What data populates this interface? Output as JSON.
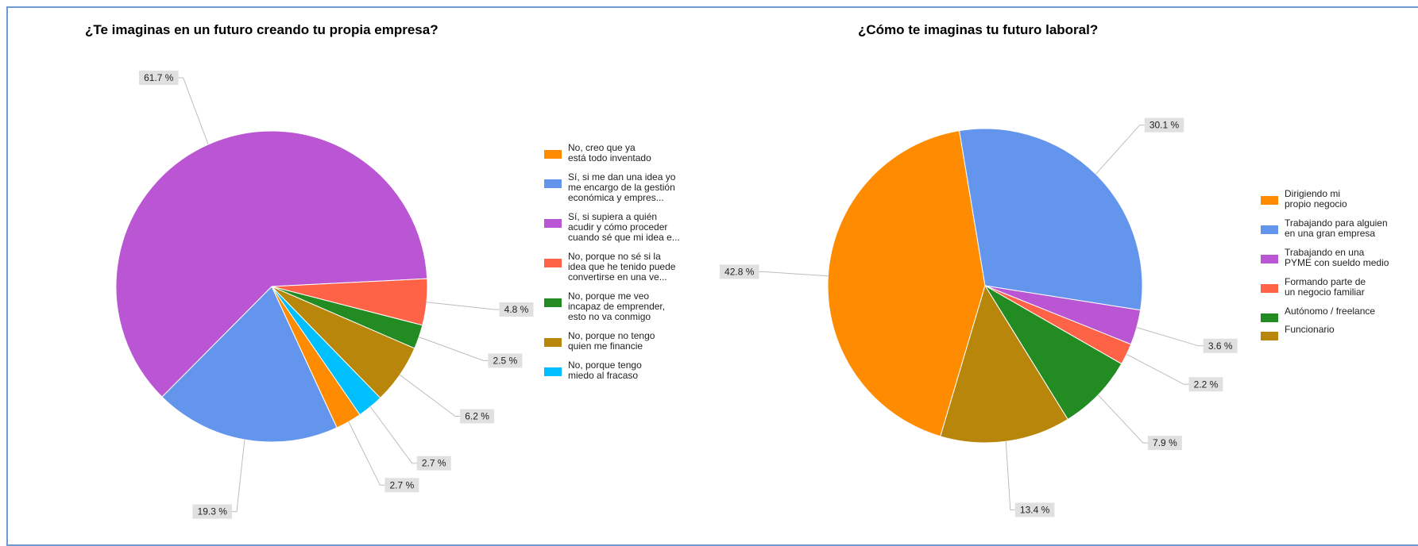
{
  "chart_data": [
    {
      "type": "pie",
      "title": "¿Te imaginas en un futuro creando tu propia empresa?",
      "slices": [
        {
          "label": "No, creo que ya está todo inventado",
          "value": 2.7,
          "display": "2.7 %",
          "color": "#ff8c00"
        },
        {
          "label": "Sí, si me dan una idea yo me encargo de la gestión económica y empres...",
          "value": 19.3,
          "display": "19.3 %",
          "color": "#6495ed"
        },
        {
          "label": "Sí, si supiera a quién acudir y cómo proceder cuando sé que mi idea e...",
          "value": 61.7,
          "display": "61.7 %",
          "color": "#ba55d3"
        },
        {
          "label": "No, porque no sé si la idea que he tenido puede convertirse en una ve...",
          "value": 4.8,
          "display": "4.8 %",
          "color": "#ff6347"
        },
        {
          "label": "No, porque me veo incapaz de emprender, esto no va conmigo",
          "value": 2.5,
          "display": "2.5 %",
          "color": "#228b22"
        },
        {
          "label": "No, porque no tengo quien me financie",
          "value": 6.2,
          "display": "6.2 %",
          "color": "#b8860b"
        },
        {
          "label": "No, porque tengo miedo al fracaso",
          "value": 2.7,
          "display": "2.7 %",
          "color": "#00bfff"
        }
      ],
      "legend_lines": [
        [
          "No, creo que ya",
          "está todo inventado"
        ],
        [
          "Sí, si me dan una idea yo",
          "me encargo de la gestión",
          "económica y empres..."
        ],
        [
          "Sí, si supiera a quién",
          "acudir y cómo proceder",
          "cuando sé que mi idea e..."
        ],
        [
          "No, porque no sé si la",
          "idea que he tenido puede",
          "convertirse en una ve..."
        ],
        [
          "No, porque me veo",
          "incapaz de emprender,",
          "esto no va conmigo"
        ],
        [
          "No, porque no tengo",
          "quien me financie"
        ],
        [
          "No, porque tengo",
          "miedo al fracaso"
        ]
      ],
      "legend_position": "right"
    },
    {
      "type": "pie",
      "title": "¿Cómo te imaginas tu futuro laboral?",
      "slices": [
        {
          "label": "Dirigiendo mi propio negocio",
          "value": 42.8,
          "display": "42.8 %",
          "color": "#ff8c00"
        },
        {
          "label": "Trabajando para alguien en una gran empresa",
          "value": 30.1,
          "display": "30.1 %",
          "color": "#6495ed"
        },
        {
          "label": "Trabajando en una PYME con sueldo medio",
          "value": 3.6,
          "display": "3.6 %",
          "color": "#ba55d3"
        },
        {
          "label": "Formando parte de un negocio familiar",
          "value": 2.2,
          "display": "2.2 %",
          "color": "#ff6347"
        },
        {
          "label": "Autónomo / freelance",
          "value": 7.9,
          "display": "7.9 %",
          "color": "#228b22"
        },
        {
          "label": "Funcionario",
          "value": 13.4,
          "display": "13.4 %",
          "color": "#b8860b"
        }
      ],
      "legend_lines": [
        [
          "Dirigiendo mi",
          "propio negocio"
        ],
        [
          "Trabajando para alguien",
          "en una gran empresa"
        ],
        [
          "Trabajando en una",
          "PYME con sueldo medio"
        ],
        [
          "Formando parte de",
          "un negocio familiar"
        ],
        [
          "Autónomo / freelance"
        ],
        [
          "Funcionario"
        ]
      ],
      "legend_position": "right"
    }
  ]
}
